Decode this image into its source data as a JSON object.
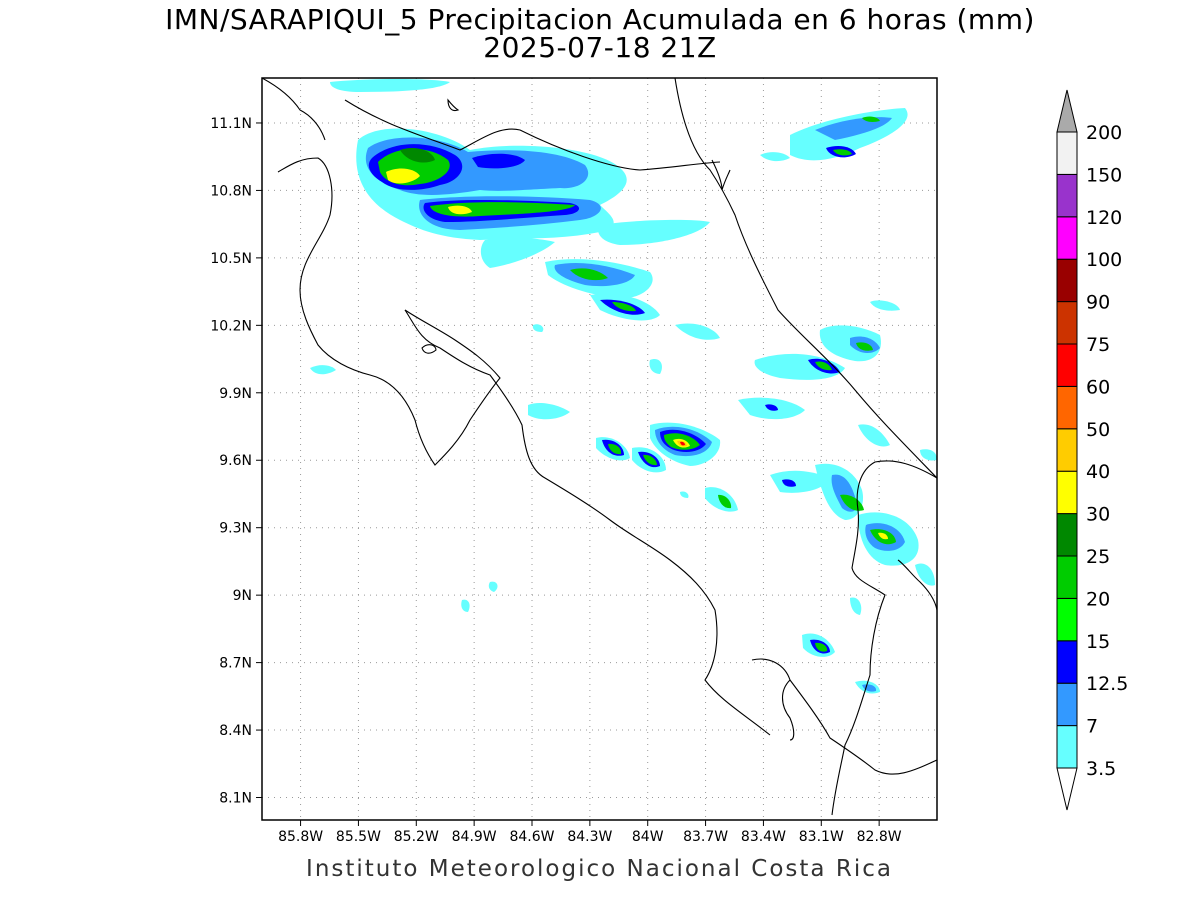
{
  "title": {
    "line1": "IMN/SARAPIQUI_5 Precipitacion Acumulada en 6 horas (mm)",
    "line2": "2025-07-18 21Z"
  },
  "footer": "Instituto Meteorologico Nacional Costa Rica",
  "map": {
    "lon_range": [
      -86.0,
      -82.5
    ],
    "lat_range": [
      8.0,
      11.3
    ],
    "lat_ticks": [
      {
        "value": 11.1,
        "label": "11.1N"
      },
      {
        "value": 10.8,
        "label": "10.8N"
      },
      {
        "value": 10.5,
        "label": "10.5N"
      },
      {
        "value": 10.2,
        "label": "10.2N"
      },
      {
        "value": 9.9,
        "label": "9.9N"
      },
      {
        "value": 9.6,
        "label": "9.6N"
      },
      {
        "value": 9.3,
        "label": "9.3N"
      },
      {
        "value": 9.0,
        "label": "9N"
      },
      {
        "value": 8.7,
        "label": "8.7N"
      },
      {
        "value": 8.4,
        "label": "8.4N"
      },
      {
        "value": 8.1,
        "label": "8.1N"
      }
    ],
    "lon_ticks": [
      {
        "value": -85.8,
        "label": "85.8W"
      },
      {
        "value": -85.5,
        "label": "85.5W"
      },
      {
        "value": -85.2,
        "label": "85.2W"
      },
      {
        "value": -84.9,
        "label": "84.9W"
      },
      {
        "value": -84.6,
        "label": "84.6W"
      },
      {
        "value": -84.3,
        "label": "84.3W"
      },
      {
        "value": -84.0,
        "label": "84W"
      },
      {
        "value": -83.7,
        "label": "83.7W"
      },
      {
        "value": -83.4,
        "label": "83.4W"
      },
      {
        "value": -83.1,
        "label": "83.1W"
      },
      {
        "value": -82.8,
        "label": "82.8W"
      }
    ],
    "grid": true
  },
  "colorbar": {
    "levels": [
      "3.5",
      "7",
      "12.5",
      "15",
      "20",
      "25",
      "30",
      "40",
      "50",
      "60",
      "75",
      "90",
      "100",
      "120",
      "150",
      "200"
    ],
    "colors": [
      "#66ffff",
      "#3399ff",
      "#0000ff",
      "#00ff00",
      "#00cc00",
      "#008800",
      "#ffff00",
      "#ffcc00",
      "#ff6600",
      "#ff0000",
      "#cc3300",
      "#990000",
      "#ff00ff",
      "#9933cc",
      "#f2f2f2",
      "#aaaaaa"
    ]
  },
  "colors": {
    "c1": "#66ffff",
    "c2": "#3399ff",
    "c3": "#0000ff",
    "c4": "#00ff00",
    "c5": "#00cc00",
    "c6": "#008800",
    "c7": "#ffff00",
    "c8": "#ffcc00",
    "c10": "#ff0000"
  }
}
